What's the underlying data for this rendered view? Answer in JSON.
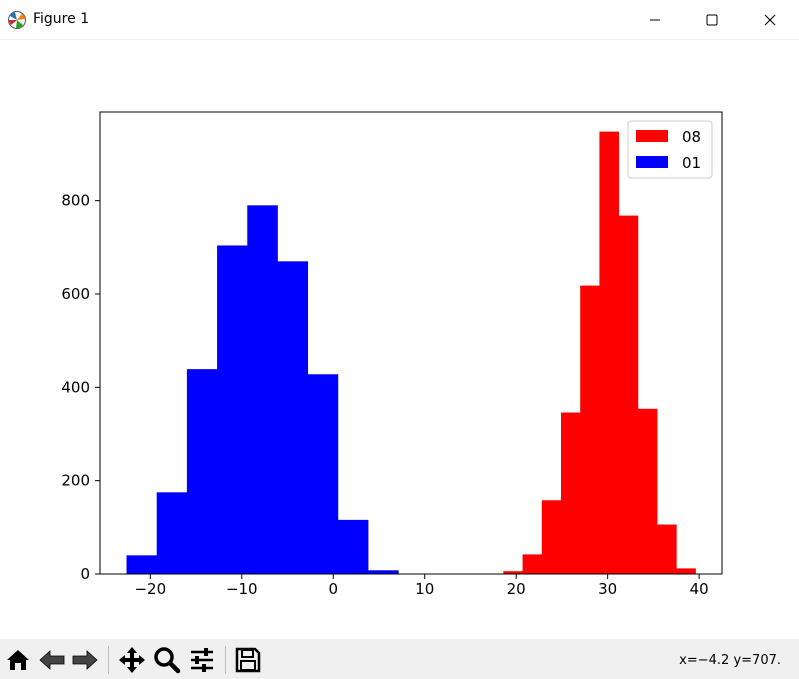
{
  "window": {
    "title": "Figure 1",
    "icon": "matplotlib-icon",
    "controls": [
      "minimize-icon",
      "maximize-icon",
      "close-icon"
    ]
  },
  "toolbar": {
    "buttons": [
      "home-icon",
      "back-icon",
      "forward-icon",
      "pan-icon",
      "zoom-icon",
      "configure-subplots-icon",
      "save-icon"
    ],
    "coords": "x=−4.2 y=707."
  },
  "chart_data": {
    "type": "bar",
    "subtype": "histogram",
    "xlim": [
      -25.5,
      42.5
    ],
    "ylim": [
      0,
      990
    ],
    "xticks": [
      -20,
      -10,
      0,
      10,
      20,
      30,
      40
    ],
    "xtick_labels": [
      "−20",
      "−10",
      "0",
      "10",
      "20",
      "30",
      "40"
    ],
    "yticks": [
      0,
      200,
      400,
      600,
      800
    ],
    "yticklabels": [
      "0",
      "200",
      "400",
      "600",
      "800"
    ],
    "legend_position": "top-right",
    "series": [
      {
        "name": "08",
        "color": "#ff0000",
        "bin_edges": [
          18.6,
          20.7,
          22.8,
          24.9,
          27.0,
          29.1,
          31.2,
          33.3,
          35.4,
          37.5,
          39.6
        ],
        "values": [
          6,
          42,
          158,
          346,
          618,
          948,
          768,
          354,
          106,
          12
        ]
      },
      {
        "name": "01",
        "color": "#0000ff",
        "bin_edges": [
          -22.6,
          -19.3,
          -16.0,
          -12.7,
          -9.4,
          -6.1,
          -2.8,
          0.5,
          3.8,
          7.1
        ],
        "values": [
          40,
          175,
          439,
          704,
          790,
          670,
          428,
          116,
          8
        ]
      }
    ]
  }
}
